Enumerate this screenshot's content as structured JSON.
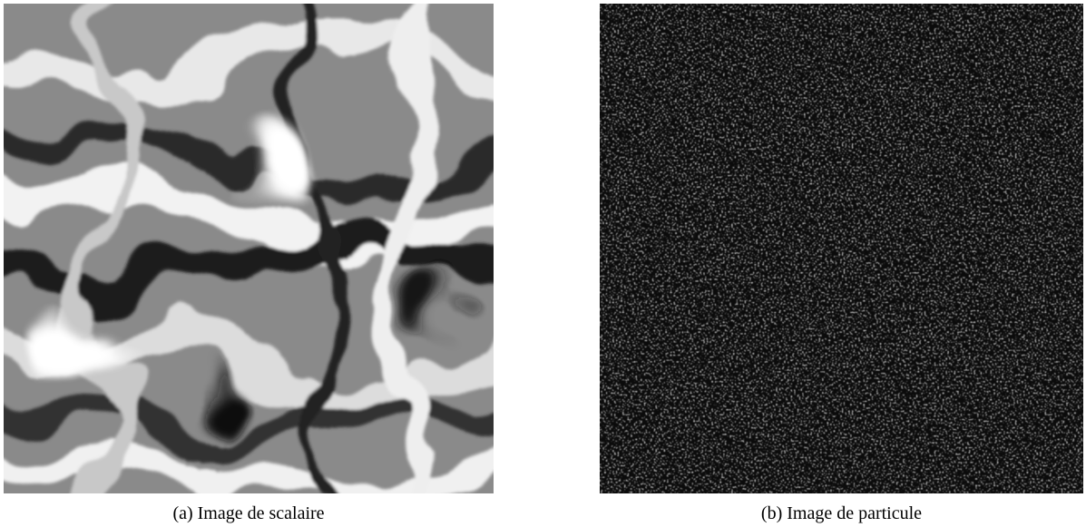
{
  "figure": {
    "panels": [
      {
        "caption": "(a) Image de scalaire",
        "content": "turbulent scalar field, grayscale swirls"
      },
      {
        "caption": "(b) Image de particule",
        "content": "particle image, white dots on black"
      }
    ]
  },
  "colors": {
    "background": "#ffffff",
    "particle_bg": "#0b0b0b",
    "particle": "#d8d8d8"
  }
}
